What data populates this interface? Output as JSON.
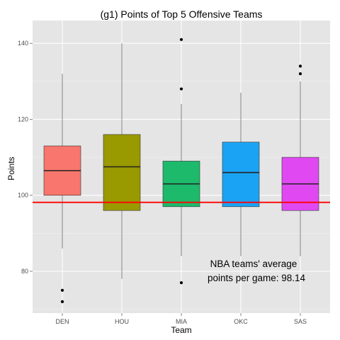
{
  "chart_data": {
    "type": "boxplot",
    "title": "(g1) Points of Top 5 Offensive Teams",
    "xlabel": "Team",
    "ylabel": "Points",
    "ylim": [
      69,
      146
    ],
    "yticks": [
      80,
      100,
      120,
      140
    ],
    "grid": true,
    "legend": "none",
    "categories": [
      "DEN",
      "HOU",
      "MIA",
      "OKC",
      "SAS"
    ],
    "colors": [
      "#F8766D",
      "#999900",
      "#1DBA6B",
      "#1AA3F5",
      "#E049F2"
    ],
    "boxes": [
      {
        "team": "DEN",
        "q1": 100,
        "median": 106.5,
        "q3": 113,
        "whisker_low": 86,
        "whisker_high": 132,
        "outliers": [
          75,
          72
        ]
      },
      {
        "team": "HOU",
        "q1": 96,
        "median": 107.5,
        "q3": 116,
        "whisker_low": 78,
        "whisker_high": 140,
        "outliers": []
      },
      {
        "team": "MIA",
        "q1": 97,
        "median": 103,
        "q3": 109,
        "whisker_low": 84,
        "whisker_high": 124,
        "outliers": [
          141,
          128,
          77
        ]
      },
      {
        "team": "OKC",
        "q1": 97,
        "median": 106,
        "q3": 114,
        "whisker_low": 84,
        "whisker_high": 127,
        "outliers": []
      },
      {
        "team": "SAS",
        "q1": 96,
        "median": 103,
        "q3": 110,
        "whisker_low": 84,
        "whisker_high": 130,
        "outliers": [
          134,
          132
        ]
      }
    ],
    "reference_line": {
      "value": 98.14,
      "color": "#FF0000"
    },
    "annotation": [
      "NBA teams' average",
      "points per game: 98.14"
    ]
  }
}
